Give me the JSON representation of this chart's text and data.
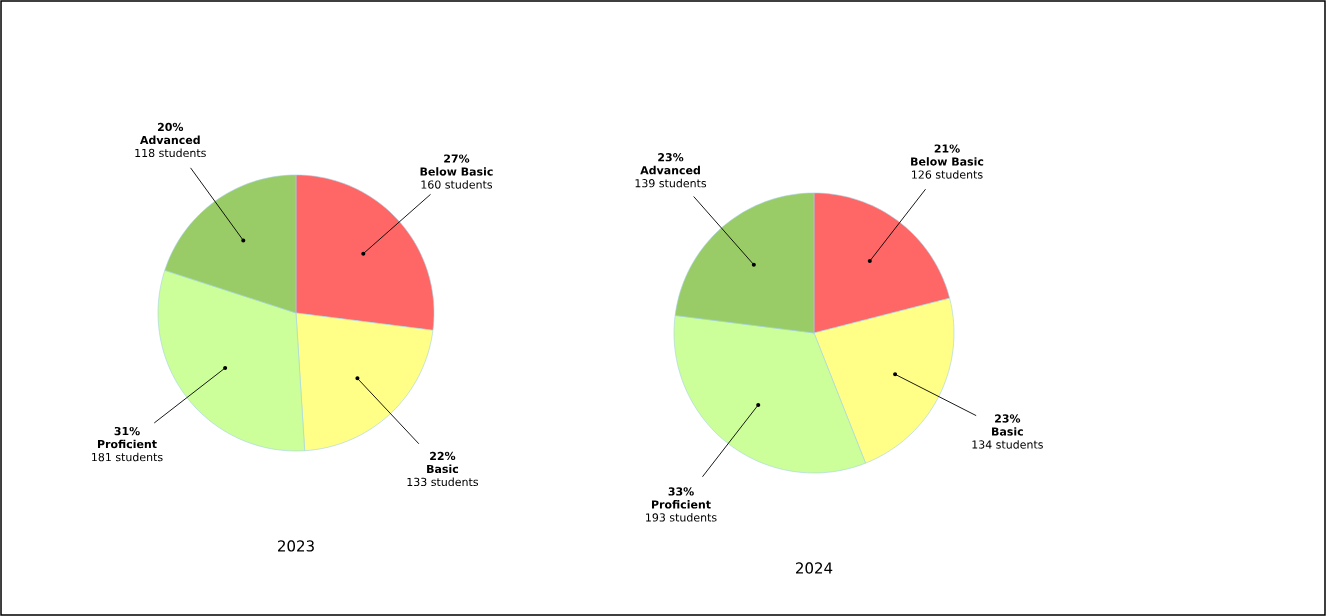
{
  "chart_data": [
    {
      "type": "pie",
      "xlabel": "2023",
      "categories": [
        "Below Basic",
        "Basic",
        "Proficient",
        "Advanced"
      ],
      "values": [
        27,
        22,
        31,
        20
      ],
      "value_labels": [
        "27%",
        "22%",
        "31%",
        "20%"
      ],
      "colors": [
        "#ff6666",
        "#ffff88",
        "#ccff99",
        "#99cc66"
      ],
      "annotations": [
        "160 students",
        "133 students",
        "181 students",
        "118 students"
      ]
    },
    {
      "type": "pie",
      "xlabel": "2024",
      "categories": [
        "Below Basic",
        "Basic",
        "Proficient",
        "Advanced"
      ],
      "values": [
        21,
        23,
        33,
        23
      ],
      "value_labels": [
        "21%",
        "23%",
        "33%",
        "23%"
      ],
      "colors": [
        "#ff6666",
        "#ffff88",
        "#ccff99",
        "#99cc66"
      ],
      "annotations": [
        "126 students",
        "134 students",
        "193 students",
        "139 students"
      ]
    }
  ]
}
